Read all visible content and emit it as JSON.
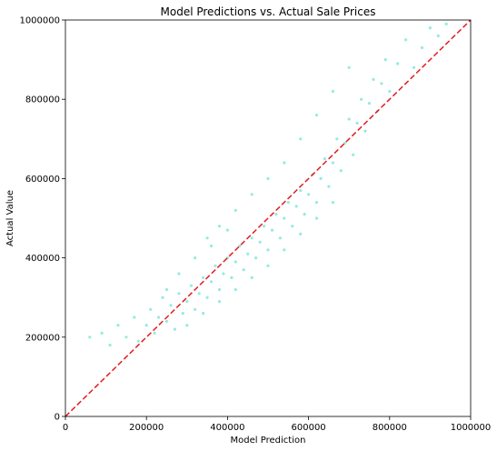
{
  "chart_data": {
    "type": "scatter",
    "title": "Model Predictions vs. Actual Sale Prices",
    "xlabel": "Model Prediction",
    "ylabel": "Actual Value",
    "xlim": [
      0,
      1000000
    ],
    "ylim": [
      0,
      1000000
    ],
    "x_ticks": [
      {
        "value": 0,
        "label": "0"
      },
      {
        "value": 200000,
        "label": "200000"
      },
      {
        "value": 400000,
        "label": "400000"
      },
      {
        "value": 600000,
        "label": "600000"
      },
      {
        "value": 800000,
        "label": "800000"
      },
      {
        "value": 1000000,
        "label": "1000000"
      }
    ],
    "y_ticks": [
      {
        "value": 0,
        "label": "0"
      },
      {
        "value": 200000,
        "label": "200000"
      },
      {
        "value": 400000,
        "label": "400000"
      },
      {
        "value": 600000,
        "label": "600000"
      },
      {
        "value": 800000,
        "label": "800000"
      },
      {
        "value": 1000000,
        "label": "1000000"
      }
    ],
    "grid": false,
    "legend": "none",
    "point_color": "#40d9c8",
    "reference_line": {
      "from": [
        0,
        0
      ],
      "to": [
        1000000,
        1000000
      ],
      "color": "#e41a1c",
      "style": "dashed"
    },
    "series": [
      {
        "points": [
          [
            60000,
            200000
          ],
          [
            90000,
            210000
          ],
          [
            110000,
            180000
          ],
          [
            130000,
            230000
          ],
          [
            150000,
            200000
          ],
          [
            170000,
            250000
          ],
          [
            180000,
            190000
          ],
          [
            200000,
            230000
          ],
          [
            210000,
            270000
          ],
          [
            220000,
            210000
          ],
          [
            230000,
            250000
          ],
          [
            240000,
            300000
          ],
          [
            250000,
            240000
          ],
          [
            260000,
            280000
          ],
          [
            270000,
            220000
          ],
          [
            280000,
            310000
          ],
          [
            290000,
            260000
          ],
          [
            300000,
            290000
          ],
          [
            310000,
            330000
          ],
          [
            320000,
            270000
          ],
          [
            330000,
            310000
          ],
          [
            340000,
            350000
          ],
          [
            350000,
            300000
          ],
          [
            360000,
            340000
          ],
          [
            370000,
            380000
          ],
          [
            380000,
            320000
          ],
          [
            390000,
            360000
          ],
          [
            400000,
            400000
          ],
          [
            410000,
            350000
          ],
          [
            420000,
            390000
          ],
          [
            430000,
            430000
          ],
          [
            440000,
            370000
          ],
          [
            450000,
            410000
          ],
          [
            460000,
            450000
          ],
          [
            470000,
            400000
          ],
          [
            480000,
            440000
          ],
          [
            490000,
            480000
          ],
          [
            500000,
            420000
          ],
          [
            510000,
            470000
          ],
          [
            520000,
            510000
          ],
          [
            530000,
            450000
          ],
          [
            540000,
            500000
          ],
          [
            550000,
            540000
          ],
          [
            560000,
            480000
          ],
          [
            570000,
            530000
          ],
          [
            580000,
            570000
          ],
          [
            590000,
            510000
          ],
          [
            600000,
            560000
          ],
          [
            610000,
            610000
          ],
          [
            620000,
            540000
          ],
          [
            630000,
            600000
          ],
          [
            640000,
            650000
          ],
          [
            650000,
            580000
          ],
          [
            660000,
            640000
          ],
          [
            670000,
            700000
          ],
          [
            680000,
            620000
          ],
          [
            690000,
            690000
          ],
          [
            700000,
            750000
          ],
          [
            710000,
            660000
          ],
          [
            720000,
            740000
          ],
          [
            730000,
            800000
          ],
          [
            740000,
            720000
          ],
          [
            750000,
            790000
          ],
          [
            760000,
            850000
          ],
          [
            770000,
            770000
          ],
          [
            780000,
            840000
          ],
          [
            790000,
            900000
          ],
          [
            800000,
            820000
          ],
          [
            820000,
            890000
          ],
          [
            840000,
            950000
          ],
          [
            860000,
            880000
          ],
          [
            880000,
            930000
          ],
          [
            900000,
            980000
          ],
          [
            920000,
            960000
          ],
          [
            940000,
            990000
          ],
          [
            350000,
            450000
          ],
          [
            380000,
            480000
          ],
          [
            420000,
            520000
          ],
          [
            460000,
            560000
          ],
          [
            500000,
            600000
          ],
          [
            540000,
            640000
          ],
          [
            580000,
            700000
          ],
          [
            620000,
            760000
          ],
          [
            660000,
            820000
          ],
          [
            700000,
            880000
          ],
          [
            300000,
            230000
          ],
          [
            340000,
            260000
          ],
          [
            380000,
            290000
          ],
          [
            420000,
            320000
          ],
          [
            460000,
            350000
          ],
          [
            500000,
            380000
          ],
          [
            540000,
            420000
          ],
          [
            580000,
            460000
          ],
          [
            620000,
            500000
          ],
          [
            660000,
            540000
          ],
          [
            250000,
            320000
          ],
          [
            280000,
            360000
          ],
          [
            320000,
            400000
          ],
          [
            360000,
            430000
          ],
          [
            400000,
            470000
          ]
        ]
      }
    ]
  }
}
